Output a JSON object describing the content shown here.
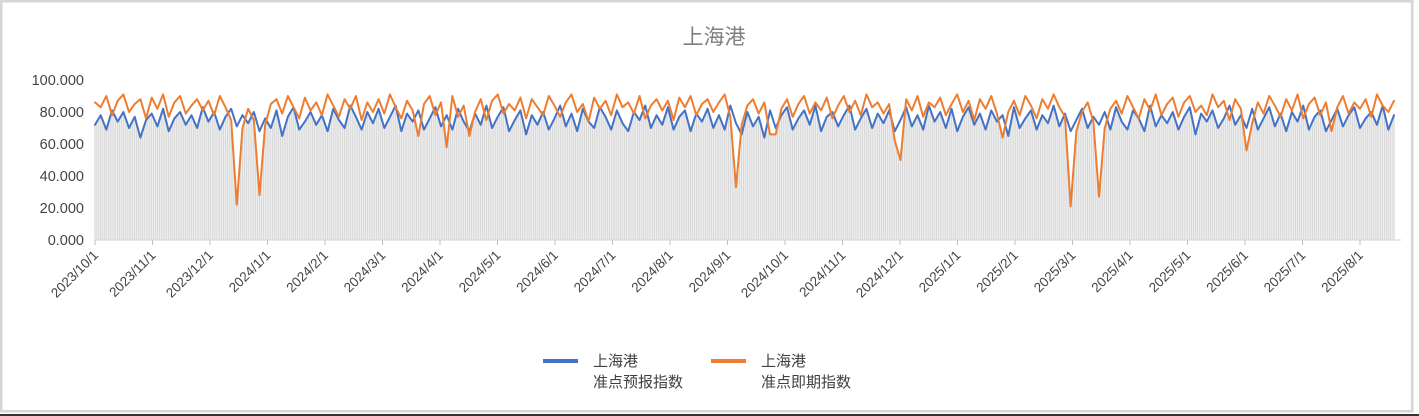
{
  "title": "上海港",
  "legend": {
    "series1": {
      "label_line1": "上海港",
      "label_line2": "准点预报指数",
      "color": "#4472C4"
    },
    "series2": {
      "label_line1": "上海港",
      "label_line2": "准点即期指数",
      "color": "#ED7D31"
    }
  },
  "colors": {
    "series1_blue": "#4472C4",
    "series2_orange": "#ED7D31",
    "dropline_gray": "#D9D9D9",
    "axis_line": "#D9D9D9",
    "tick_mark": "#BFBFBF",
    "axis_label": "#444444",
    "title_gray": "#7F7F7F",
    "legend_text": "#404040",
    "chart_border": "#D6D6D6",
    "bottom_strip": "#333333"
  },
  "chart_data": {
    "type": "line",
    "title": "上海港",
    "xlabel": "",
    "ylabel": "",
    "ylim": [
      0,
      100
    ],
    "grid": false,
    "droplines": true,
    "legend_position": "bottom",
    "x_tick_labels": [
      "2023/10/1",
      "2023/11/1",
      "2023/12/1",
      "2024/1/1",
      "2024/2/1",
      "2024/3/1",
      "2024/4/1",
      "2024/5/1",
      "2024/6/1",
      "2024/7/1",
      "2024/8/1",
      "2024/9/1",
      "2024/10/1",
      "2024/11/1",
      "2024/12/1",
      "2025/1/1",
      "2025/2/1",
      "2025/3/1",
      "2025/4/1",
      "2025/5/1",
      "2025/6/1",
      "2025/7/1",
      "2025/8/1"
    ],
    "y_tick_labels": [
      "0.000",
      "20.000",
      "40.000",
      "60.000",
      "80.000",
      "100.000"
    ],
    "y_tick_values": [
      0,
      20,
      40,
      60,
      80,
      100
    ],
    "sample_step_days": 3,
    "x_start": "2023/10/1",
    "x_end": "2025/8/19",
    "series": [
      {
        "name": "上海港准点预报指数",
        "color": "#4472C4",
        "values": [
          72,
          78,
          69,
          81,
          74,
          80,
          70,
          77,
          64,
          75,
          79,
          71,
          82,
          68,
          76,
          80,
          72,
          78,
          70,
          83,
          74,
          80,
          69,
          77,
          82,
          71,
          78,
          73,
          80,
          68,
          76,
          70,
          81,
          65,
          77,
          83,
          69,
          74,
          80,
          72,
          78,
          68,
          82,
          75,
          70,
          84,
          77,
          69,
          80,
          73,
          82,
          70,
          77,
          84,
          68,
          79,
          74,
          81,
          69,
          76,
          83,
          71,
          78,
          69,
          82,
          74,
          68,
          79,
          72,
          84,
          70,
          77,
          83,
          68,
          75,
          81,
          66,
          78,
          72,
          80,
          69,
          76,
          84,
          71,
          79,
          68,
          82,
          74,
          70,
          83,
          77,
          69,
          81,
          73,
          68,
          80,
          75,
          84,
          70,
          78,
          72,
          83,
          69,
          77,
          81,
          68,
          79,
          74,
          82,
          70,
          78,
          69,
          84,
          73,
          66,
          80,
          71,
          77,
          64,
          81,
          70,
          78,
          83,
          69,
          76,
          81,
          72,
          84,
          68,
          77,
          80,
          71,
          78,
          84,
          69,
          76,
          82,
          70,
          79,
          73,
          81,
          68,
          75,
          83,
          71,
          78,
          69,
          84,
          74,
          80,
          70,
          82,
          68,
          77,
          83,
          72,
          79,
          69,
          81,
          74,
          78,
          65,
          83,
          70,
          76,
          81,
          69,
          78,
          73,
          84,
          71,
          79,
          68,
          75,
          82,
          70,
          77,
          72,
          80,
          69,
          83,
          74,
          69,
          81,
          76,
          68,
          84,
          71,
          78,
          73,
          80,
          69,
          77,
          83,
          66,
          79,
          74,
          81,
          70,
          76,
          84,
          72,
          78,
          70,
          82,
          69,
          76,
          83,
          71,
          79,
          68,
          80,
          74,
          84,
          69,
          77,
          81,
          68,
          75,
          82,
          71,
          78,
          83,
          70,
          76,
          80,
          72,
          84,
          69,
          78
        ]
      },
      {
        "name": "上海港准点即期指数",
        "color": "#ED7D31",
        "values": [
          86,
          83,
          90,
          78,
          87,
          91,
          80,
          85,
          88,
          76,
          89,
          82,
          91,
          77,
          86,
          90,
          79,
          84,
          88,
          81,
          87,
          78,
          90,
          83,
          75,
          22,
          70,
          82,
          75,
          28,
          72,
          85,
          88,
          79,
          90,
          83,
          76,
          89,
          81,
          86,
          78,
          91,
          84,
          77,
          88,
          82,
          90,
          75,
          86,
          80,
          88,
          79,
          91,
          83,
          76,
          87,
          81,
          65,
          85,
          90,
          78,
          86,
          58,
          90,
          77,
          84,
          65,
          80,
          88,
          75,
          87,
          91,
          79,
          85,
          81,
          89,
          76,
          88,
          83,
          78,
          90,
          84,
          77,
          86,
          91,
          80,
          85,
          74,
          89,
          82,
          87,
          78,
          91,
          83,
          86,
          79,
          90,
          76,
          84,
          88,
          81,
          87,
          75,
          89,
          83,
          90,
          78,
          85,
          88,
          80,
          86,
          91,
          77,
          33,
          72,
          84,
          88,
          79,
          86,
          66,
          66,
          82,
          88,
          77,
          85,
          90,
          79,
          86,
          81,
          89,
          76,
          84,
          90,
          80,
          87,
          78,
          91,
          83,
          86,
          79,
          85,
          62,
          50,
          88,
          81,
          90,
          77,
          86,
          83,
          89,
          78,
          85,
          91,
          80,
          87,
          75,
          88,
          82,
          90,
          79,
          64,
          80,
          87,
          78,
          90,
          84,
          76,
          88,
          82,
          91,
          83,
          77,
          21,
          68,
          80,
          86,
          74,
          27,
          70,
          82,
          87,
          79,
          90,
          83,
          76,
          88,
          81,
          91,
          78,
          85,
          89,
          77,
          86,
          90,
          80,
          84,
          78,
          91,
          83,
          87,
          75,
          88,
          82,
          56,
          73,
          86,
          79,
          90,
          84,
          77,
          88,
          81,
          91,
          76,
          85,
          89,
          78,
          86,
          68,
          83,
          90,
          79,
          86,
          82,
          88,
          77,
          91,
          84,
          80,
          87
        ]
      }
    ]
  }
}
